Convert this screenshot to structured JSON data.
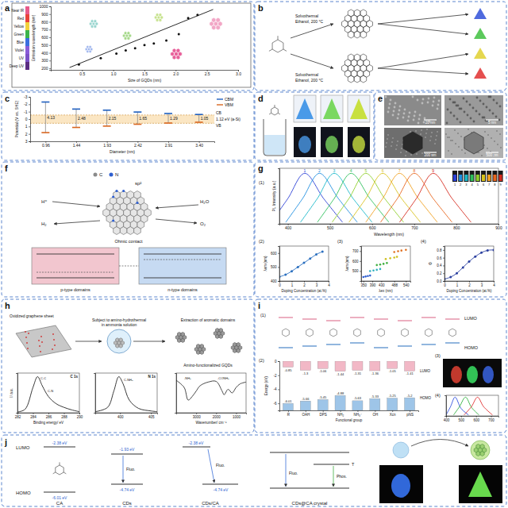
{
  "panel_labels": [
    "a",
    "b",
    "c",
    "d",
    "e",
    "f",
    "g",
    "h",
    "i",
    "j"
  ],
  "subplot_labels": {
    "g": [
      "(1)",
      "(2)",
      "(3)",
      "(4)"
    ],
    "i": [
      "(1)",
      "(2)",
      "(3)",
      "(4)"
    ]
  },
  "chart_data": [
    {
      "type": "scatter",
      "x_label": "Size of GQDs (nm)",
      "y_label": "Emission wavelength (nm)",
      "xlim": [
        0,
        3
      ],
      "ylim": [
        180,
        1000
      ],
      "xticks": [
        0.5,
        {
          "value": 1,
          "label": "1.0"
        },
        1.5,
        {
          "value": 2,
          "label": "2.0"
        },
        2.5,
        {
          "value": 3,
          "label": "3.0"
        }
      ],
      "yticks": [
        200,
        300,
        400,
        500,
        600,
        700,
        800,
        900,
        1000
      ],
      "spectrum_labels": [
        "Deep UV",
        "UV",
        "Violet",
        "Blue",
        "Green",
        "Yellow",
        "Red",
        "Near IR"
      ],
      "series": [
        {
          "type": "scatter",
          "color": "#111111",
          "marker": "circle",
          "x": [
            0.45,
            0.8,
            1.05,
            1.2,
            1.35,
            1.5,
            1.65,
            1.85,
            2.05,
            2.2,
            2.35
          ],
          "values": [
            250,
            330,
            390,
            430,
            460,
            500,
            520,
            560,
            640,
            850,
            890
          ]
        },
        {
          "type": "line",
          "color": "#111111",
          "x": [
            0.3,
            2.6
          ],
          "values": [
            210,
            960
          ]
        }
      ]
    },
    {
      "type": "range",
      "x_label": "Diameter (nm)",
      "y_label": "Potential (V vs. SHE)",
      "categories": [
        "0.96",
        "1.44",
        "1.93",
        "2.42",
        "2.91",
        "3.40"
      ],
      "ylim": [
        3,
        -3
      ],
      "yticks": [
        -3,
        -2,
        -1,
        0,
        1,
        2,
        3
      ],
      "legend": "right",
      "series": [
        {
          "name": "CBM",
          "color": "#1f5fbf",
          "values": [
            -2.3,
            -1.35,
            -1.2,
            -0.95,
            -0.75,
            -0.62
          ]
        },
        {
          "name": "VBM",
          "color": "#d9661f",
          "values": [
            1.83,
            1.13,
            0.95,
            0.7,
            0.54,
            0.43
          ]
        }
      ],
      "band_gaps": [
        4.13,
        2.48,
        2.15,
        1.65,
        1.29,
        1.05
      ],
      "reference_band": {
        "values": [
          -0.55,
          0.57
        ],
        "labels": [
          "CB",
          "VB"
        ],
        "label": "1.12 eV (a-Si)"
      }
    },
    {
      "type": "line",
      "x_label": "Wavelength (nm)",
      "y_label": "PL Intensity (a.u.)",
      "xlim": [
        380,
        900
      ],
      "ylim": [
        0,
        1.1
      ],
      "xticks": [
        400,
        500,
        600,
        700,
        800,
        900
      ],
      "tick_labels": "x",
      "legend": "inline",
      "series": [
        {
          "name": "1",
          "color": "#2b3fd6",
          "x": [
            360,
            400,
            440,
            485,
            530
          ],
          "values": [
            0.03,
            0.5,
            1,
            0.5,
            0.03
          ]
        },
        {
          "name": "2",
          "color": "#1f8fe0",
          "x": [
            395,
            435,
            475,
            520,
            565
          ],
          "values": [
            0.03,
            0.5,
            1,
            0.5,
            0.03
          ]
        },
        {
          "name": "3",
          "color": "#19b8c9",
          "x": [
            430,
            470,
            510,
            555,
            600
          ],
          "values": [
            0.03,
            0.5,
            1,
            0.5,
            0.03
          ]
        },
        {
          "name": "4",
          "color": "#2dbf5a",
          "x": [
            470,
            510,
            550,
            595,
            640
          ],
          "values": [
            0.03,
            0.5,
            1,
            0.5,
            0.03
          ]
        },
        {
          "name": "5",
          "color": "#8fcf2a",
          "x": [
            505,
            545,
            585,
            630,
            675
          ],
          "values": [
            0.03,
            0.5,
            1,
            0.5,
            0.03
          ]
        },
        {
          "name": "6",
          "color": "#d8c21c",
          "x": [
            545,
            585,
            625,
            670,
            715
          ],
          "values": [
            0.03,
            0.5,
            1,
            0.5,
            0.03
          ]
        },
        {
          "name": "7",
          "color": "#f0a020",
          "x": [
            585,
            625,
            665,
            710,
            755
          ],
          "values": [
            0.03,
            0.5,
            1,
            0.5,
            0.03
          ]
        },
        {
          "name": "8",
          "color": "#e8661e",
          "x": [
            620,
            660,
            700,
            745,
            790
          ],
          "values": [
            0.03,
            0.5,
            1,
            0.5,
            0.03
          ]
        },
        {
          "name": "9",
          "color": "#d62a1e",
          "x": [
            665,
            705,
            745,
            790,
            835
          ],
          "values": [
            0.03,
            0.5,
            1,
            0.5,
            0.03
          ]
        }
      ]
    },
    {
      "type": "line",
      "marker": "circle",
      "x_label": "Doping Concentration (at.%)",
      "y_label": "λem (nm)",
      "xlim": [
        0,
        4
      ],
      "ylim": [
        400,
        650
      ],
      "xticks": [
        0,
        1,
        2,
        3,
        4
      ],
      "yticks": [
        400,
        500,
        600
      ],
      "series": [
        {
          "color": "#2a6fbf",
          "x": [
            0,
            0.5,
            1,
            1.5,
            2,
            2.5,
            3,
            3.5
          ],
          "values": [
            430,
            445,
            470,
            500,
            530,
            560,
            590,
            610
          ]
        }
      ]
    },
    {
      "type": "scatter",
      "x_label": "λex (nm)",
      "y_label": "λem (nm)",
      "xlim": [
        340,
        560
      ],
      "ylim": [
        400,
        750
      ],
      "xticks": [
        350,
        390,
        430,
        488,
        540
      ],
      "yticks": [
        500,
        600,
        700
      ],
      "series": [
        {
          "color": "#3060d0",
          "x": [
            350,
            360,
            370,
            380
          ],
          "values": [
            440,
            445,
            450,
            455
          ]
        },
        {
          "color": "#30b0c0",
          "x": [
            380,
            395,
            410,
            425
          ],
          "values": [
            500,
            505,
            512,
            520
          ]
        },
        {
          "color": "#40b040",
          "x": [
            410,
            425,
            440,
            455
          ],
          "values": [
            560,
            565,
            572,
            580
          ]
        },
        {
          "color": "#d0c020",
          "x": [
            450,
            470,
            488,
            500
          ],
          "values": [
            620,
            628,
            635,
            642
          ]
        },
        {
          "color": "#e07020",
          "x": [
            488,
            505,
            520,
            540
          ],
          "values": [
            690,
            698,
            705,
            712
          ]
        }
      ]
    },
    {
      "type": "line",
      "marker": "circle",
      "x_label": "Doping Concentration (at.%)",
      "y_label": "Φ",
      "xlim": [
        0,
        4
      ],
      "ylim": [
        0,
        0.9
      ],
      "xticks": [
        0,
        1,
        2,
        3,
        4
      ],
      "yticks": [
        {
          "value": 0,
          "label": "0.0"
        },
        0.2,
        0.4,
        0.6,
        0.8
      ],
      "series": [
        {
          "color": "#2a3f9f",
          "x": [
            0,
            0.5,
            1,
            1.5,
            2,
            2.5,
            3,
            3.5,
            4
          ],
          "values": [
            0.05,
            0.1,
            0.2,
            0.35,
            0.5,
            0.63,
            0.73,
            0.79,
            0.8
          ]
        }
      ]
    },
    {
      "type": "line",
      "title": "C 1s",
      "x_label": "Binding energy/ eV",
      "y_label": "I/ a.u.",
      "xlim": [
        282,
        290
      ],
      "ylim": [
        0,
        1.1
      ],
      "xticks": [
        282,
        284,
        286,
        288,
        290
      ],
      "tick_labels": "x",
      "annotations": [
        "C-C",
        "C-N"
      ],
      "series": [
        {
          "color": "#222222",
          "x": [
            282,
            283,
            284,
            284.6,
            285.2,
            286,
            287,
            288,
            289,
            290
          ],
          "values": [
            0.02,
            0.1,
            0.7,
            1,
            0.75,
            0.45,
            0.25,
            0.15,
            0.08,
            0.03
          ]
        }
      ]
    },
    {
      "type": "line",
      "title": "N 1s",
      "xlim": [
        396,
        406
      ],
      "ylim": [
        0,
        1.1
      ],
      "xticks": [
        400,
        405
      ],
      "tick_labels": "x",
      "annotations": [
        "C-NH₂"
      ],
      "series": [
        {
          "color": "#222222",
          "x": [
            396,
            398,
            399,
            399.8,
            400.5,
            401.5,
            403,
            405,
            406
          ],
          "values": [
            0.03,
            0.15,
            0.6,
            1,
            0.8,
            0.35,
            0.12,
            0.05,
            0.03
          ]
        }
      ]
    },
    {
      "type": "line",
      "x_label": "Wavenumber/ cm⁻¹",
      "xlim": [
        4000,
        500
      ],
      "ylim": [
        0,
        1.1
      ],
      "xticks": [
        3000,
        2000,
        1000
      ],
      "tick_labels": "x",
      "annotations": [
        "-NH₂",
        "-CONH₂"
      ],
      "series": [
        {
          "color": "#333333",
          "x": [
            4000,
            3600,
            3400,
            3200,
            3000,
            2800,
            2400,
            2000,
            1700,
            1600,
            1400,
            1200,
            1000,
            800,
            500
          ],
          "values": [
            0.9,
            0.7,
            0.35,
            0.45,
            0.6,
            0.75,
            0.85,
            0.87,
            0.6,
            0.5,
            0.65,
            0.55,
            0.7,
            0.8,
            0.85
          ]
        }
      ]
    },
    {
      "type": "levels",
      "x_label": "Functional group",
      "y_label": "Energy (eV)",
      "categories": [
        "R",
        "OAH",
        "DPS",
        "NH₂",
        "NH₃⁺",
        "OH",
        "Xcn",
        "pNS"
      ],
      "ylim": [
        -7,
        0
      ],
      "yticks": [
        -6,
        -4,
        -2,
        0
      ],
      "data_labels": true,
      "legend": "inline",
      "series": [
        {
          "name": "LUMO",
          "color": "#f2b8c6",
          "values": [
            -0.85,
            -1.3,
            -1.06,
            -1.44,
            -1.31,
            -1.36,
            -1.05,
            -1.41
          ]
        },
        {
          "name": "HOMO",
          "color": "#9ec5e8",
          "values": [
            -6.01,
            -5.66,
            -5.45,
            -4.88,
            -5.63,
            -5.33,
            -5.25,
            -5.2
          ]
        }
      ]
    },
    {
      "type": "line",
      "xlim": [
        400,
        750
      ],
      "ylim": [
        0,
        1.1
      ],
      "xticks": [
        400,
        500,
        600,
        700
      ],
      "tick_labels": "x",
      "series": [
        {
          "color": "#3050e0",
          "x": [
            400,
            430,
            460,
            500,
            550
          ],
          "values": [
            0.05,
            0.5,
            1,
            0.4,
            0.05
          ]
        },
        {
          "color": "#30b040",
          "x": [
            450,
            490,
            530,
            570,
            620
          ],
          "values": [
            0.05,
            0.5,
            1,
            0.45,
            0.05
          ]
        },
        {
          "color": "#e03030",
          "x": [
            520,
            570,
            610,
            650,
            710
          ],
          "values": [
            0.05,
            0.5,
            1,
            0.5,
            0.05
          ]
        }
      ]
    }
  ],
  "panel_b": {
    "steps": [
      [
        "Solvothermal",
        "Ethanol, 200 °C"
      ],
      [
        "Solvothermal",
        "Ethanol, 200 °C"
      ]
    ]
  },
  "panel_e": {
    "scale_bars": [
      "20 nm",
      "5 nm",
      "200 nm",
      "500 nm"
    ]
  },
  "panel_f": {
    "atoms": [
      "C",
      "N"
    ],
    "hybrid": "sp²",
    "species": [
      "H⁺",
      "H₂",
      "H₂O",
      "O₂"
    ],
    "contact": "Ohmic contact",
    "domains": [
      "p-type domains",
      "n-type domains"
    ]
  },
  "panel_h": {
    "steps": [
      "Oxidized graphene sheet",
      "Subject to amino-hydrothermal",
      "in ammonia solution",
      "Extraction of aromatic domains",
      "Amino-functionalized GQDs"
    ]
  },
  "panel_i": {
    "levels": [
      "LUMO",
      "HOMO"
    ]
  },
  "panel_j": {
    "levels": [
      "LUMO",
      "HOMO"
    ],
    "energies": [
      "-2.38 eV",
      "-6.01 eV",
      "-1.93 eV",
      "-4.74 eV",
      "-2.38 eV",
      "-4.74 eV"
    ],
    "processes": [
      "Fluo.",
      "Fluo.",
      "Fluo.",
      "Phos."
    ],
    "state": "T",
    "samples": [
      "CA",
      "CDs",
      "CDs/CA",
      "CDs@CA crystal"
    ]
  }
}
